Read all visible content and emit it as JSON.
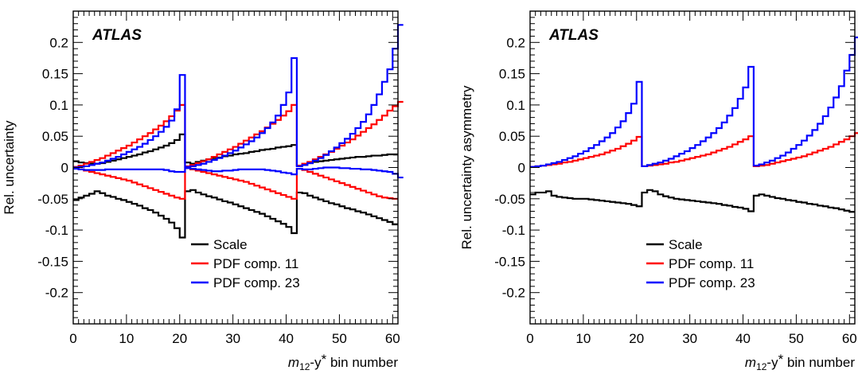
{
  "figure_text": {
    "atlas_label": "ATLAS",
    "xlabel_m": "m",
    "xlabel_sub": "12",
    "xlabel_rest": "-y",
    "xlabel_star": "*",
    "xlabel_tail": " bin number"
  },
  "chart_data": [
    {
      "type": "line",
      "step": true,
      "ylabel": "Rel. uncertainty",
      "xlim": [
        0,
        61
      ],
      "ylim": [
        -0.25,
        0.25
      ],
      "xticks": [
        0,
        10,
        20,
        30,
        40,
        50,
        60
      ],
      "xtick_labels": [
        "0",
        "10",
        "20",
        "30",
        "40",
        "50",
        "60"
      ],
      "yticks": [
        -0.2,
        -0.15,
        -0.1,
        -0.05,
        0,
        0.05,
        0.1,
        0.15,
        0.2
      ],
      "ytick_labels": [
        "-0.2",
        "-0.15",
        "-0.1",
        "-0.05",
        "0",
        "0.05",
        "0.1",
        "0.15",
        "0.2"
      ],
      "legend_position": "bottom-center",
      "series": [
        {
          "name": "Scale",
          "color": "#000000",
          "values": [
            0.01,
            0.008,
            0.007,
            0.006,
            0.006,
            0.007,
            0.009,
            0.011,
            0.013,
            0.015,
            0.017,
            0.019,
            0.021,
            0.024,
            0.026,
            0.029,
            0.032,
            0.035,
            0.039,
            0.044,
            0.053,
            0.008,
            0.006,
            0.009,
            0.011,
            0.013,
            0.015,
            0.016,
            0.018,
            0.019,
            0.021,
            0.022,
            0.023,
            0.025,
            0.026,
            0.028,
            0.029,
            0.03,
            0.032,
            0.033,
            0.034,
            0.036,
            0.003,
            0.005,
            0.007,
            0.009,
            0.01,
            0.011,
            0.012,
            0.013,
            0.014,
            0.015,
            0.016,
            0.017,
            0.017,
            0.018,
            0.019,
            0.019,
            0.02,
            0.021,
            0.021
          ]
        },
        {
          "name": "",
          "color": "#000000",
          "values": [
            -0.052,
            -0.048,
            -0.045,
            -0.042,
            -0.038,
            -0.041,
            -0.045,
            -0.047,
            -0.05,
            -0.052,
            -0.055,
            -0.058,
            -0.061,
            -0.065,
            -0.068,
            -0.072,
            -0.077,
            -0.082,
            -0.088,
            -0.097,
            -0.112,
            -0.038,
            -0.036,
            -0.04,
            -0.043,
            -0.046,
            -0.048,
            -0.051,
            -0.054,
            -0.056,
            -0.059,
            -0.062,
            -0.065,
            -0.068,
            -0.071,
            -0.074,
            -0.078,
            -0.082,
            -0.086,
            -0.09,
            -0.095,
            -0.105,
            -0.04,
            -0.041,
            -0.045,
            -0.048,
            -0.051,
            -0.054,
            -0.057,
            -0.059,
            -0.062,
            -0.065,
            -0.067,
            -0.07,
            -0.072,
            -0.075,
            -0.078,
            -0.081,
            -0.084,
            -0.087,
            -0.091
          ]
        },
        {
          "name": "PDF comp. 11",
          "color": "#ff0000",
          "values": [
            0.001,
            0.003,
            0.006,
            0.009,
            0.012,
            0.015,
            0.019,
            0.023,
            0.027,
            0.031,
            0.035,
            0.04,
            0.045,
            0.05,
            0.055,
            0.061,
            0.067,
            0.074,
            0.082,
            0.091,
            0.1,
            0.002,
            0.004,
            0.007,
            0.01,
            0.013,
            0.017,
            0.021,
            0.025,
            0.029,
            0.033,
            0.038,
            0.043,
            0.048,
            0.053,
            0.058,
            0.064,
            0.07,
            0.076,
            0.083,
            0.09,
            0.1,
            0.003,
            0.006,
            0.009,
            0.013,
            0.017,
            0.021,
            0.025,
            0.03,
            0.035,
            0.04,
            0.045,
            0.051,
            0.057,
            0.063,
            0.069,
            0.076,
            0.083,
            0.091,
            0.098,
            0.105
          ]
        },
        {
          "name": "",
          "color": "#ff0000",
          "values": [
            -0.001,
            -0.003,
            -0.005,
            -0.007,
            -0.009,
            -0.011,
            -0.013,
            -0.015,
            -0.017,
            -0.019,
            -0.021,
            -0.024,
            -0.027,
            -0.03,
            -0.033,
            -0.036,
            -0.039,
            -0.042,
            -0.045,
            -0.048,
            -0.05,
            -0.001,
            -0.003,
            -0.005,
            -0.007,
            -0.009,
            -0.011,
            -0.013,
            -0.015,
            -0.017,
            -0.019,
            -0.021,
            -0.023,
            -0.026,
            -0.029,
            -0.032,
            -0.035,
            -0.038,
            -0.041,
            -0.044,
            -0.047,
            -0.05,
            -0.002,
            -0.004,
            -0.007,
            -0.01,
            -0.013,
            -0.016,
            -0.019,
            -0.022,
            -0.025,
            -0.028,
            -0.031,
            -0.034,
            -0.037,
            -0.04,
            -0.043,
            -0.046,
            -0.048,
            -0.049,
            -0.05
          ]
        },
        {
          "name": "PDF comp. 23",
          "color": "#0000ff",
          "values": [
            0.0,
            0.001,
            0.002,
            0.004,
            0.006,
            0.008,
            0.011,
            0.014,
            0.017,
            0.021,
            0.025,
            0.029,
            0.033,
            0.038,
            0.044,
            0.05,
            0.057,
            0.065,
            0.075,
            0.093,
            0.148,
            0.001,
            0.002,
            0.004,
            0.006,
            0.009,
            0.012,
            0.015,
            0.019,
            0.023,
            0.027,
            0.032,
            0.037,
            0.042,
            0.048,
            0.055,
            0.063,
            0.072,
            0.083,
            0.1,
            0.12,
            0.175,
            0.002,
            0.004,
            0.007,
            0.011,
            0.015,
            0.02,
            0.026,
            0.032,
            0.039,
            0.046,
            0.054,
            0.063,
            0.073,
            0.085,
            0.1,
            0.117,
            0.137,
            0.157,
            0.19,
            0.228
          ]
        },
        {
          "name": "",
          "color": "#0000ff",
          "values": [
            -0.002,
            -0.003,
            -0.004,
            -0.004,
            -0.004,
            -0.004,
            -0.003,
            -0.003,
            -0.003,
            -0.003,
            -0.003,
            -0.003,
            -0.003,
            -0.003,
            -0.003,
            -0.003,
            -0.003,
            -0.004,
            -0.006,
            -0.007,
            -0.007,
            -0.001,
            -0.002,
            -0.003,
            -0.004,
            -0.005,
            -0.006,
            -0.006,
            -0.005,
            -0.005,
            -0.004,
            -0.003,
            -0.003,
            -0.003,
            -0.003,
            -0.003,
            -0.004,
            -0.005,
            -0.006,
            -0.008,
            -0.009,
            -0.011,
            -0.002,
            -0.003,
            -0.003,
            -0.002,
            -0.001,
            0.0,
            0.0,
            0.0,
            -0.001,
            -0.001,
            -0.002,
            -0.002,
            -0.003,
            -0.003,
            -0.004,
            -0.005,
            -0.006,
            -0.007,
            -0.01,
            -0.016
          ]
        }
      ]
    },
    {
      "type": "line",
      "step": true,
      "ylabel": "Rel. uncertainty asymmetry",
      "xlim": [
        0,
        61
      ],
      "ylim": [
        -0.25,
        0.25
      ],
      "xticks": [
        0,
        10,
        20,
        30,
        40,
        50,
        60
      ],
      "xtick_labels": [
        "0",
        "10",
        "20",
        "30",
        "40",
        "50",
        "60"
      ],
      "yticks": [
        -0.2,
        -0.15,
        -0.1,
        -0.05,
        0,
        0.05,
        0.1,
        0.15,
        0.2
      ],
      "ytick_labels": [
        "-0.2",
        "-0.15",
        "-0.1",
        "-0.05",
        "0",
        "0.05",
        "0.1",
        "0.15",
        "0.2"
      ],
      "legend_position": "bottom-center",
      "series": [
        {
          "name": "Scale",
          "color": "#000000",
          "values": [
            -0.043,
            -0.04,
            -0.04,
            -0.038,
            -0.045,
            -0.047,
            -0.048,
            -0.049,
            -0.05,
            -0.05,
            -0.05,
            -0.051,
            -0.052,
            -0.053,
            -0.054,
            -0.055,
            -0.056,
            -0.057,
            -0.058,
            -0.06,
            -0.062,
            -0.04,
            -0.036,
            -0.038,
            -0.043,
            -0.046,
            -0.048,
            -0.05,
            -0.051,
            -0.052,
            -0.053,
            -0.054,
            -0.055,
            -0.056,
            -0.057,
            -0.058,
            -0.06,
            -0.061,
            -0.063,
            -0.064,
            -0.066,
            -0.07,
            -0.045,
            -0.043,
            -0.045,
            -0.047,
            -0.049,
            -0.05,
            -0.052,
            -0.053,
            -0.055,
            -0.056,
            -0.058,
            -0.059,
            -0.061,
            -0.062,
            -0.064,
            -0.065,
            -0.067,
            -0.069,
            -0.071
          ]
        },
        {
          "name": "PDF comp. 11",
          "color": "#ff0000",
          "values": [
            0.001,
            0.002,
            0.003,
            0.004,
            0.005,
            0.006,
            0.008,
            0.009,
            0.011,
            0.013,
            0.015,
            0.017,
            0.019,
            0.021,
            0.024,
            0.027,
            0.03,
            0.034,
            0.038,
            0.043,
            0.049,
            0.002,
            0.003,
            0.004,
            0.005,
            0.006,
            0.008,
            0.009,
            0.011,
            0.013,
            0.015,
            0.017,
            0.019,
            0.021,
            0.024,
            0.027,
            0.03,
            0.033,
            0.037,
            0.041,
            0.045,
            0.05,
            0.002,
            0.003,
            0.004,
            0.006,
            0.008,
            0.01,
            0.012,
            0.014,
            0.016,
            0.018,
            0.021,
            0.024,
            0.027,
            0.03,
            0.033,
            0.037,
            0.041,
            0.045,
            0.05,
            0.055
          ]
        },
        {
          "name": "PDF comp. 23",
          "color": "#0000ff",
          "values": [
            0.001,
            0.002,
            0.003,
            0.005,
            0.007,
            0.009,
            0.012,
            0.015,
            0.018,
            0.022,
            0.026,
            0.031,
            0.036,
            0.042,
            0.048,
            0.055,
            0.064,
            0.074,
            0.087,
            0.102,
            0.137,
            0.002,
            0.004,
            0.006,
            0.008,
            0.011,
            0.014,
            0.018,
            0.022,
            0.026,
            0.031,
            0.036,
            0.042,
            0.048,
            0.055,
            0.063,
            0.072,
            0.083,
            0.095,
            0.11,
            0.128,
            0.161,
            0.003,
            0.005,
            0.008,
            0.011,
            0.015,
            0.019,
            0.024,
            0.03,
            0.036,
            0.043,
            0.051,
            0.06,
            0.07,
            0.082,
            0.096,
            0.112,
            0.13,
            0.155,
            0.18,
            0.208
          ]
        }
      ]
    }
  ]
}
